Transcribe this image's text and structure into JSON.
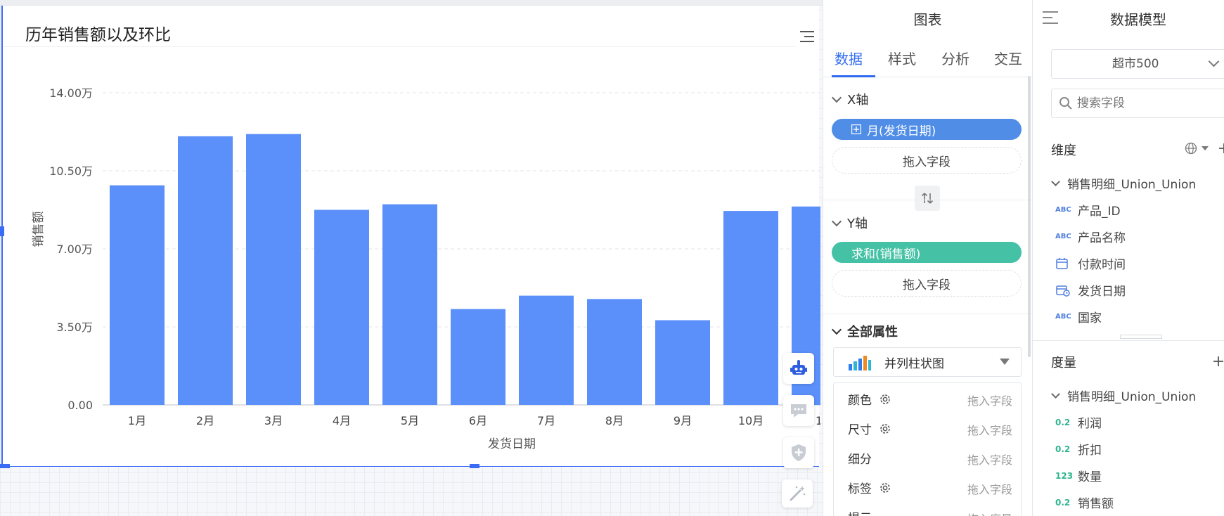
{
  "chart_widget": {
    "title": "历年销售额以及环比"
  },
  "chart_data": {
    "type": "bar",
    "title": "历年销售额以及环比",
    "xlabel": "发货日期",
    "ylabel": "销售额",
    "categories": [
      "1月",
      "2月",
      "3月",
      "4月",
      "5月",
      "6月",
      "7月",
      "8月",
      "9月",
      "10月",
      "1"
    ],
    "series": [
      {
        "values": [
          9.85,
          12.05,
          12.15,
          8.75,
          9.0,
          4.3,
          4.9,
          4.75,
          3.8,
          8.7,
          8.9
        ]
      }
    ],
    "y_ticks": [
      "0.00",
      "3.50万",
      "7.00万",
      "10.50万",
      "14.00万"
    ],
    "ylim": [
      0,
      14
    ],
    "y_unit": "万",
    "bar_color": "#5b8ff9",
    "grid": "horizontal dashed",
    "legend": "none"
  },
  "float_tools": [
    {
      "icon": "robot-icon"
    },
    {
      "icon": "comment-icon"
    },
    {
      "icon": "shield-plus-icon"
    },
    {
      "icon": "magic-wand-icon"
    }
  ],
  "chart_panel": {
    "title": "图表",
    "tabs": [
      {
        "label": "数据",
        "active": true
      },
      {
        "label": "样式",
        "active": false
      },
      {
        "label": "分析",
        "active": false
      },
      {
        "label": "交互",
        "active": false
      }
    ],
    "x_axis": {
      "label": "X轴",
      "field": "月(发货日期)",
      "drop_text": "拖入字段"
    },
    "y_axis": {
      "label": "Y轴",
      "field": "求和(销售额)",
      "drop_text": "拖入字段"
    },
    "all_props": {
      "label": "全部属性",
      "chart_type": "并列柱状图",
      "rows": [
        {
          "label": "颜色",
          "has_gear": true,
          "drop": "拖入字段"
        },
        {
          "label": "尺寸",
          "has_gear": true,
          "drop": "拖入字段"
        },
        {
          "label": "细分",
          "has_gear": false,
          "drop": "拖入字段"
        },
        {
          "label": "标签",
          "has_gear": true,
          "drop": "拖入字段"
        },
        {
          "label": "提示",
          "has_gear": false,
          "drop": "拖入度量"
        }
      ]
    }
  },
  "data_model": {
    "title": "数据模型",
    "dataset": "超市500",
    "search_placeholder": "搜索字段",
    "dimensions": {
      "label": "维度",
      "table": "销售明细_Union_Union",
      "fields": [
        {
          "type": "ABC",
          "name": "产品_ID"
        },
        {
          "type": "ABC",
          "name": "产品名称"
        },
        {
          "type": "date",
          "name": "付款时间"
        },
        {
          "type": "datetime",
          "name": "发货日期"
        },
        {
          "type": "ABC",
          "name": "国家"
        }
      ]
    },
    "measures": {
      "label": "度量",
      "table": "销售明细_Union_Union",
      "fields": [
        {
          "type": "0.2",
          "name": "利润"
        },
        {
          "type": "0.2",
          "name": "折扣"
        },
        {
          "type": "123",
          "name": "数量"
        },
        {
          "type": "0.2",
          "name": "销售额"
        }
      ]
    }
  }
}
